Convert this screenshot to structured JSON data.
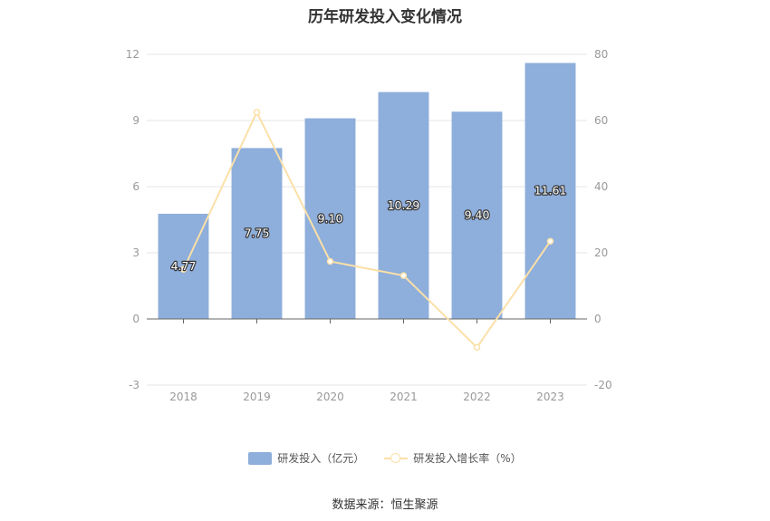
{
  "chart_data": {
    "type": "bar",
    "title": "历年研发投入变化情况",
    "categories": [
      "2018",
      "2019",
      "2020",
      "2021",
      "2022",
      "2023"
    ],
    "series": [
      {
        "name": "研发投入（亿元）",
        "type": "bar",
        "axis": "left",
        "values": [
          4.77,
          7.75,
          9.1,
          10.29,
          9.4,
          11.61
        ],
        "labels": [
          "4.77",
          "7.75",
          "9.10",
          "10.29",
          "9.40",
          "11.61"
        ]
      },
      {
        "name": "研发投入增长率（%）",
        "type": "line",
        "axis": "right",
        "values": [
          15.0,
          62.5,
          17.4,
          13.1,
          -8.6,
          23.5
        ]
      }
    ],
    "y_left": {
      "min": -3,
      "max": 12,
      "ticks": [
        "-3",
        "0",
        "3",
        "6",
        "9",
        "12"
      ]
    },
    "y_right": {
      "min": -20,
      "max": 80,
      "ticks": [
        "-20",
        "0",
        "20",
        "40",
        "60",
        "80"
      ]
    },
    "grid": true,
    "legend_position": "bottom",
    "colors": {
      "bar": "#8eaedb",
      "line": "#fbe0a8",
      "grid": "#e6e6e6",
      "axis": "#666666"
    }
  },
  "source": "数据来源：恒生聚源"
}
